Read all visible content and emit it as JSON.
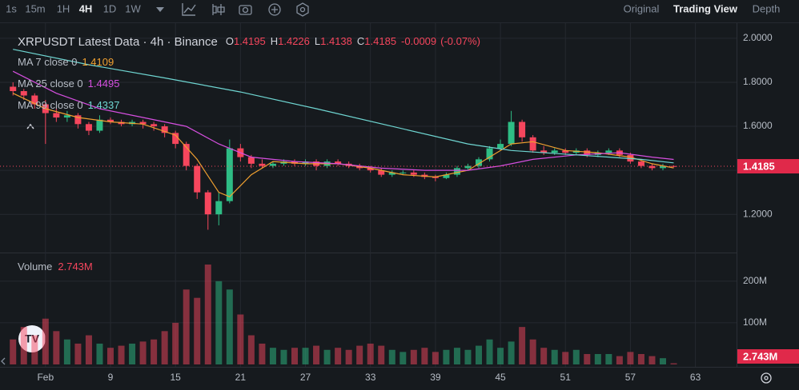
{
  "toolbar": {
    "intervals": [
      "1s",
      "15m",
      "1H",
      "4H",
      "1D",
      "1W"
    ],
    "active_interval": 3,
    "views": [
      "Original",
      "Trading View",
      "Depth"
    ],
    "active_view": 1
  },
  "chart_data": {
    "type": "candlestick",
    "title": "XRPUSDT Latest Data · 4h · Binance",
    "ohlc_keys": [
      "O",
      "H",
      "L",
      "C"
    ],
    "change": {
      "value": -0.0009,
      "pct": -0.07,
      "pct_label": "(-0.07%)"
    },
    "up_color": "#2ebd85",
    "down_color": "#f6465d",
    "xlim": [
      -1.2,
      66.8
    ],
    "xticks": [
      {
        "value": 3,
        "label": "Feb"
      },
      9,
      15,
      21,
      27,
      33,
      39,
      45,
      51,
      57,
      63
    ],
    "ylim": [
      1.03,
      2.036
    ],
    "yticks": [
      {
        "value": 1.2,
        "label": "1.2000"
      },
      {
        "value": 1.4,
        "label": "1.4000"
      },
      {
        "value": 1.6,
        "label": "1.6000"
      },
      {
        "value": 1.8,
        "label": "1.8000"
      },
      {
        "value": 2.0,
        "label": "2.0000"
      }
    ],
    "grid": true,
    "open": [
      1.78,
      1.76,
      1.74,
      1.7,
      1.66,
      1.64,
      1.65,
      1.61,
      1.58,
      1.63,
      1.62,
      1.61,
      1.62,
      1.61,
      1.6,
      1.57,
      1.52,
      1.42,
      1.3,
      1.2,
      1.26,
      1.5,
      1.46,
      1.43,
      1.42,
      1.43,
      1.44,
      1.43,
      1.44,
      1.42,
      1.44,
      1.43,
      1.42,
      1.41,
      1.4,
      1.38,
      1.39,
      1.39,
      1.38,
      1.37,
      1.365,
      1.38,
      1.41,
      1.42,
      1.45,
      1.5,
      1.52,
      1.62,
      1.55,
      1.49,
      1.48,
      1.49,
      1.48,
      1.49,
      1.47,
      1.48,
      1.49,
      1.47,
      1.44,
      1.42,
      1.41,
      1.4195
    ],
    "high": [
      1.8,
      1.77,
      1.75,
      1.72,
      1.68,
      1.67,
      1.66,
      1.62,
      1.65,
      1.64,
      1.63,
      1.63,
      1.63,
      1.62,
      1.61,
      1.58,
      1.53,
      1.43,
      1.31,
      1.3,
      1.54,
      1.52,
      1.47,
      1.45,
      1.44,
      1.45,
      1.45,
      1.45,
      1.45,
      1.45,
      1.45,
      1.44,
      1.43,
      1.42,
      1.41,
      1.4,
      1.4,
      1.4,
      1.39,
      1.38,
      1.39,
      1.42,
      1.43,
      1.46,
      1.51,
      1.54,
      1.67,
      1.63,
      1.56,
      1.51,
      1.5,
      1.5,
      1.5,
      1.5,
      1.49,
      1.5,
      1.5,
      1.48,
      1.45,
      1.43,
      1.43,
      1.4226
    ],
    "low": [
      1.74,
      1.72,
      1.68,
      1.52,
      1.62,
      1.62,
      1.59,
      1.56,
      1.57,
      1.61,
      1.6,
      1.6,
      1.59,
      1.58,
      1.55,
      1.5,
      1.4,
      1.27,
      1.13,
      1.15,
      1.25,
      1.44,
      1.41,
      1.41,
      1.41,
      1.42,
      1.42,
      1.42,
      1.4,
      1.41,
      1.42,
      1.41,
      1.4,
      1.39,
      1.37,
      1.37,
      1.38,
      1.37,
      1.36,
      1.35,
      1.36,
      1.37,
      1.4,
      1.41,
      1.44,
      1.49,
      1.51,
      1.53,
      1.48,
      1.47,
      1.47,
      1.47,
      1.47,
      1.46,
      1.46,
      1.47,
      1.46,
      1.43,
      1.41,
      1.4,
      1.4,
      1.4138
    ],
    "close": [
      1.76,
      1.74,
      1.7,
      1.66,
      1.64,
      1.65,
      1.61,
      1.58,
      1.63,
      1.62,
      1.61,
      1.62,
      1.61,
      1.6,
      1.57,
      1.52,
      1.42,
      1.3,
      1.2,
      1.26,
      1.5,
      1.46,
      1.43,
      1.42,
      1.43,
      1.44,
      1.43,
      1.44,
      1.42,
      1.44,
      1.43,
      1.42,
      1.41,
      1.4,
      1.38,
      1.39,
      1.39,
      1.38,
      1.37,
      1.365,
      1.38,
      1.41,
      1.42,
      1.45,
      1.5,
      1.52,
      1.62,
      1.55,
      1.49,
      1.48,
      1.49,
      1.48,
      1.49,
      1.47,
      1.48,
      1.49,
      1.47,
      1.44,
      1.42,
      1.41,
      1.4195,
      1.4185
    ],
    "series": [
      {
        "name": "MA 7 close 0",
        "color": "#f0a030",
        "x": [
          0,
          3,
          6,
          9,
          12,
          15,
          17,
          19,
          20,
          22,
          24,
          27,
          30,
          33,
          36,
          39,
          42,
          44,
          46,
          48,
          51,
          54,
          57,
          59,
          61
        ],
        "values": [
          1.75,
          1.68,
          1.64,
          1.62,
          1.61,
          1.56,
          1.45,
          1.3,
          1.28,
          1.38,
          1.44,
          1.43,
          1.43,
          1.41,
          1.38,
          1.37,
          1.4,
          1.46,
          1.52,
          1.53,
          1.49,
          1.48,
          1.46,
          1.43,
          1.4109
        ]
      },
      {
        "name": "MA 25 close 0",
        "color": "#d64fe0",
        "x": [
          0,
          4,
          8,
          12,
          16,
          19,
          22,
          26,
          30,
          34,
          38,
          42,
          45,
          48,
          52,
          56,
          59,
          61
        ],
        "values": [
          1.85,
          1.75,
          1.68,
          1.64,
          1.6,
          1.52,
          1.46,
          1.44,
          1.43,
          1.41,
          1.4,
          1.4,
          1.42,
          1.45,
          1.47,
          1.48,
          1.46,
          1.4495
        ]
      },
      {
        "name": "MA 99 close 0",
        "color": "#6fd6d2",
        "x": [
          0,
          7,
          14,
          21,
          28,
          35,
          42,
          46,
          52,
          58,
          61
        ],
        "values": [
          1.95,
          1.88,
          1.82,
          1.756,
          1.68,
          1.6,
          1.52,
          1.49,
          1.47,
          1.45,
          1.4337
        ]
      }
    ],
    "volume_title": "Volume",
    "volume_ylim": [
      0,
      265
    ],
    "volume_yticks": [
      {
        "value": 100,
        "label": "100M"
      },
      {
        "value": 200,
        "label": "200M"
      }
    ],
    "volume": [
      60,
      90,
      70,
      110,
      80,
      60,
      50,
      70,
      50,
      40,
      45,
      50,
      55,
      60,
      80,
      100,
      180,
      160,
      240,
      200,
      180,
      120,
      70,
      50,
      40,
      35,
      40,
      40,
      45,
      35,
      40,
      35,
      45,
      50,
      45,
      35,
      30,
      35,
      40,
      30,
      35,
      40,
      35,
      45,
      60,
      40,
      55,
      90,
      60,
      40,
      35,
      30,
      35,
      25,
      25,
      25,
      20,
      30,
      25,
      20,
      15,
      2.743
    ],
    "volume_value_labels": {
      "61": "2.743M"
    }
  }
}
